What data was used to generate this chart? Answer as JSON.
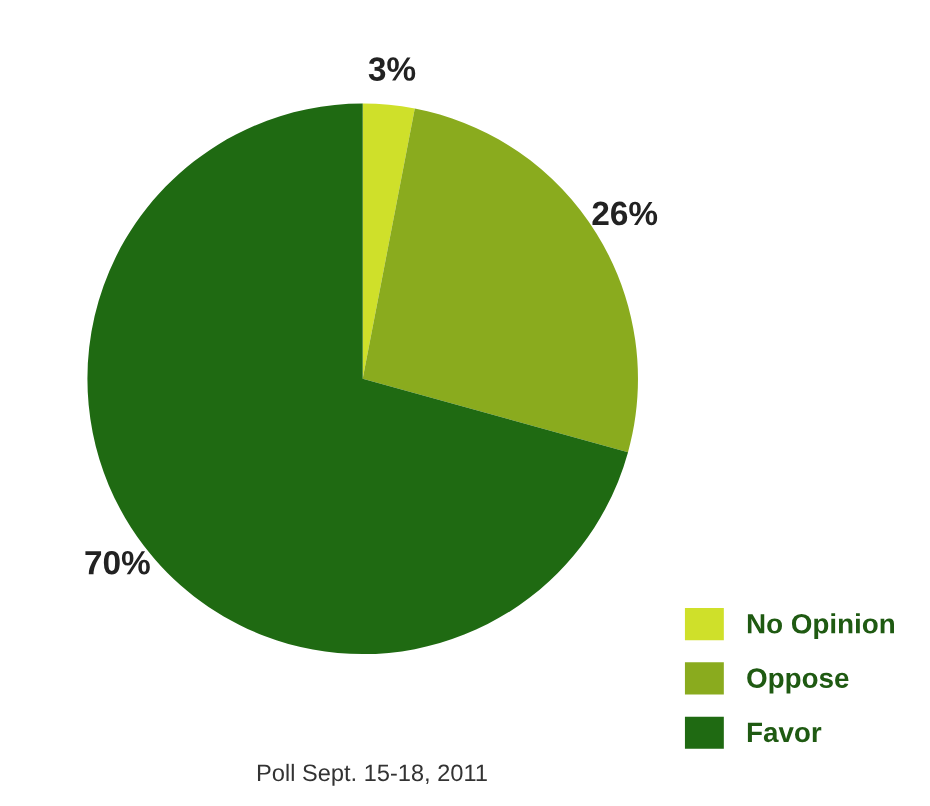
{
  "chart_data": {
    "type": "pie",
    "categories": [
      "No Opinion",
      "Oppose",
      "Favor"
    ],
    "values": [
      3,
      26,
      70
    ],
    "colors": [
      "#cfe02a",
      "#8aab1e",
      "#1f6a12"
    ],
    "value_labels": [
      "3%",
      "26%",
      "70%"
    ],
    "legend": "bottom right",
    "annotations": [
      "Poll Sept. 15-18, 2011"
    ]
  }
}
